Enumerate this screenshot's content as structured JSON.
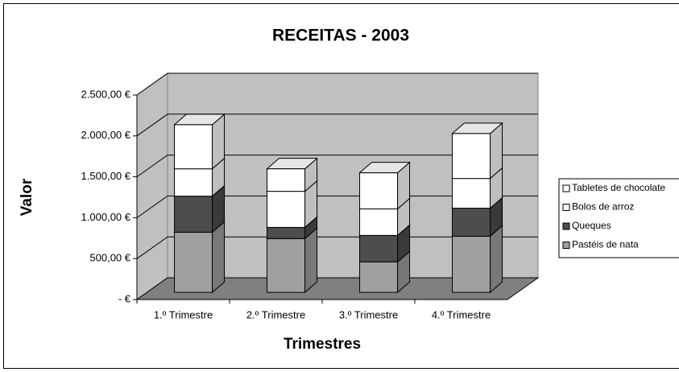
{
  "chart_data": {
    "type": "bar3d_stacked",
    "title": "RECEITAS - 2003",
    "x_label": "Trimestres",
    "y_label": "Valor",
    "categories": [
      "1.º Trimestre",
      "2.º Trimestre",
      "3.º Trimestre",
      "4.º Trimestre"
    ],
    "series": [
      {
        "name": "Pastéis de nata",
        "color": "#a0a0a0",
        "values": [
          735,
          657,
          373,
          686
        ]
      },
      {
        "name": "Queques",
        "color": "#4d4d4d",
        "values": [
          441,
          137,
          323,
          343
        ]
      },
      {
        "name": "Bolos de arroz",
        "color": "#ffffff",
        "values": [
          334,
          441,
          324,
          363
        ]
      },
      {
        "name": "Tabletes de chocolate",
        "color": "#ffffff",
        "values": [
          539,
          275,
          441,
          549
        ]
      }
    ],
    "ylim": [
      0,
      2500
    ],
    "yticks": [
      {
        "value": 0,
        "label": "-   €"
      },
      {
        "value": 500,
        "label": "500,00 €"
      },
      {
        "value": 1000,
        "label": "1.000,00 €"
      },
      {
        "value": 1500,
        "label": "1.500,00 €"
      },
      {
        "value": 2000,
        "label": "2.000,00 €"
      },
      {
        "value": 2500,
        "label": "2.500,00 €"
      }
    ],
    "grid": true,
    "legend": "right"
  }
}
